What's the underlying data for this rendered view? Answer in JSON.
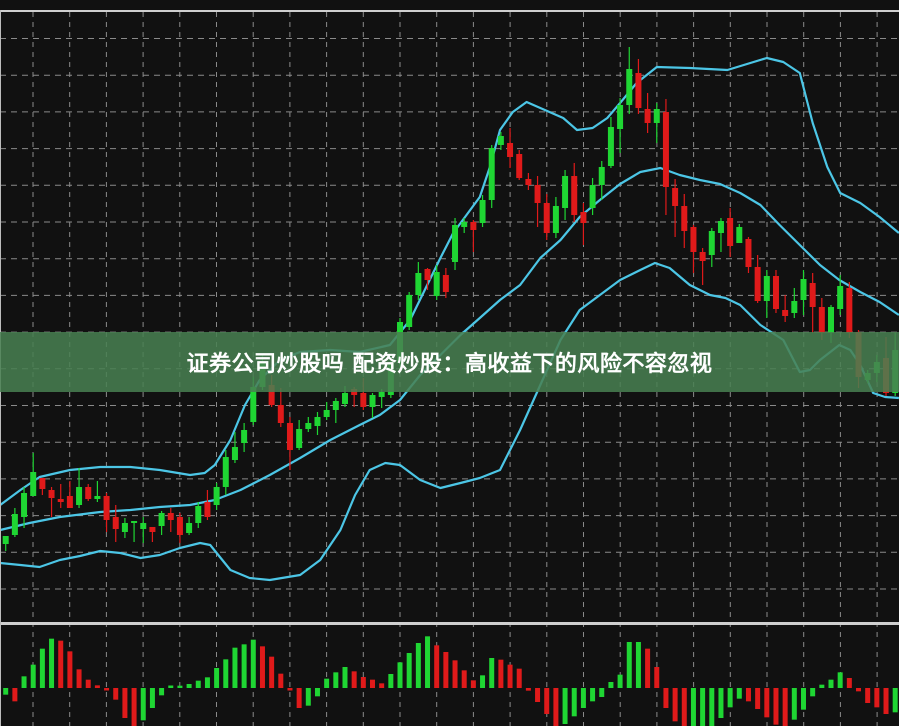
{
  "banner": {
    "title": "证券公司炒股吗 配资炒股：高收益下的风险不容忽视"
  },
  "chart_data": [
    {
      "type": "candlestick",
      "panel": "main",
      "grid": true,
      "ylim": [
        0,
        610
      ],
      "colors": {
        "up": "#1fd633",
        "down": "#e01a1a",
        "bands": "#4cc6e6",
        "background": "#111111",
        "grid": "#8a8a8a"
      },
      "ohlc": [
        [
          76,
          84,
          69,
          84
        ],
        [
          85,
          112,
          83,
          106
        ],
        [
          103,
          133,
          92,
          127
        ],
        [
          124,
          167,
          124,
          148
        ],
        [
          142,
          142,
          125,
          131
        ],
        [
          130,
          133,
          103,
          122
        ],
        [
          121,
          136,
          112,
          118
        ],
        [
          124,
          139,
          112,
          112
        ],
        [
          115,
          152,
          112,
          133
        ],
        [
          133,
          136,
          119,
          121
        ],
        [
          121,
          139,
          118,
          124
        ],
        [
          124,
          127,
          88,
          100
        ],
        [
          103,
          115,
          78,
          91
        ],
        [
          88,
          102,
          82,
          97
        ],
        [
          97,
          99,
          78,
          99
        ],
        [
          91,
          103,
          77,
          97
        ],
        [
          93,
          93,
          78,
          88
        ],
        [
          94,
          109,
          85,
          107
        ],
        [
          107,
          112,
          88,
          100
        ],
        [
          103,
          107,
          77,
          85
        ],
        [
          87,
          103,
          85,
          97
        ],
        [
          97,
          118,
          92,
          114
        ],
        [
          118,
          130,
          100,
          103
        ],
        [
          115,
          137,
          110,
          133
        ],
        [
          133,
          170,
          125,
          163
        ],
        [
          160,
          188,
          157,
          173
        ],
        [
          177,
          197,
          168,
          190
        ],
        [
          198,
          243,
          195,
          233
        ],
        [
          233,
          265,
          230,
          257
        ],
        [
          235,
          245,
          213,
          215
        ],
        [
          215,
          232,
          193,
          197
        ],
        [
          197,
          203,
          150,
          170
        ],
        [
          172,
          200,
          170,
          191
        ],
        [
          191,
          203,
          188,
          197
        ],
        [
          194,
          208,
          185,
          203
        ],
        [
          203,
          218,
          200,
          210
        ],
        [
          210,
          222,
          197,
          219
        ],
        [
          216,
          234,
          213,
          227
        ],
        [
          231,
          233,
          213,
          225
        ],
        [
          227,
          242,
          210,
          213
        ],
        [
          213,
          227,
          202,
          225
        ],
        [
          223,
          231,
          212,
          228
        ],
        [
          225,
          263,
          222,
          257
        ],
        [
          257,
          302,
          252,
          298
        ],
        [
          293,
          328,
          290,
          325
        ],
        [
          325,
          358,
          320,
          347
        ],
        [
          351,
          352,
          330,
          340
        ],
        [
          324,
          355,
          320,
          348
        ],
        [
          345,
          352,
          322,
          328
        ],
        [
          358,
          402,
          350,
          395
        ],
        [
          393,
          402,
          387,
          398
        ],
        [
          398,
          400,
          368,
          390
        ],
        [
          397,
          425,
          393,
          420
        ],
        [
          420,
          475,
          412,
          472
        ],
        [
          475,
          488,
          470,
          484
        ],
        [
          477,
          492,
          452,
          463
        ],
        [
          466,
          470,
          440,
          442
        ],
        [
          441,
          447,
          430,
          435
        ],
        [
          435,
          444,
          393,
          417
        ],
        [
          417,
          426,
          380,
          387
        ],
        [
          387,
          423,
          382,
          414
        ],
        [
          412,
          450,
          400,
          444
        ],
        [
          444,
          457,
          398,
          405
        ],
        [
          408,
          417,
          375,
          397
        ],
        [
          412,
          442,
          405,
          435
        ],
        [
          435,
          459,
          420,
          453
        ],
        [
          454,
          503,
          452,
          493
        ],
        [
          491,
          522,
          467,
          515
        ],
        [
          515,
          573,
          506,
          551
        ],
        [
          547,
          561,
          506,
          512
        ],
        [
          511,
          527,
          487,
          497
        ],
        [
          497,
          517,
          477,
          511
        ],
        [
          508,
          521,
          405,
          433
        ],
        [
          432,
          441,
          383,
          414
        ],
        [
          414,
          426,
          372,
          389
        ],
        [
          393,
          395,
          347,
          368
        ],
        [
          368,
          372,
          335,
          359
        ],
        [
          365,
          392,
          353,
          389
        ],
        [
          387,
          402,
          368,
          399
        ],
        [
          402,
          412,
          363,
          374
        ],
        [
          377,
          396,
          377,
          393
        ],
        [
          381,
          383,
          347,
          353
        ],
        [
          353,
          365,
          317,
          319
        ],
        [
          319,
          350,
          302,
          344
        ],
        [
          344,
          350,
          307,
          311
        ],
        [
          310,
          325,
          298,
          304
        ],
        [
          307,
          332,
          302,
          319
        ],
        [
          320,
          350,
          305,
          341
        ],
        [
          337,
          347,
          287,
          313
        ],
        [
          313,
          322,
          280,
          287
        ],
        [
          287,
          315,
          277,
          313
        ],
        [
          311,
          345,
          305,
          334
        ],
        [
          332,
          338,
          282,
          287
        ],
        [
          288,
          290,
          232,
          243
        ],
        [
          240,
          250,
          237,
          247
        ],
        [
          247,
          265,
          238,
          258
        ],
        [
          262,
          283,
          224,
          227
        ],
        [
          227,
          287,
          224,
          270
        ]
      ],
      "bollinger_upper": [
        [
          0.4,
          115
        ],
        [
          2.6,
          130
        ],
        [
          4.7,
          143
        ],
        [
          8.0,
          150
        ],
        [
          11.3,
          153
        ],
        [
          14.6,
          153
        ],
        [
          17.8,
          150
        ],
        [
          21.1,
          145
        ],
        [
          22.7,
          147
        ],
        [
          23.8,
          155
        ],
        [
          25.5,
          180
        ],
        [
          27.1,
          215
        ],
        [
          28.7,
          240
        ],
        [
          30.9,
          260
        ],
        [
          33.1,
          268
        ],
        [
          36.4,
          270
        ],
        [
          39.6,
          268
        ],
        [
          42.9,
          275
        ],
        [
          45.1,
          300
        ],
        [
          48.4,
          362
        ],
        [
          49.8,
          387
        ],
        [
          52.7,
          423
        ],
        [
          53.8,
          453
        ],
        [
          54.9,
          490
        ],
        [
          56.3,
          508
        ],
        [
          57.8,
          518
        ],
        [
          59.3,
          512
        ],
        [
          61.8,
          502
        ],
        [
          63.3,
          490
        ],
        [
          65.0,
          492
        ],
        [
          66.6,
          502
        ],
        [
          68.0,
          517
        ],
        [
          69.8,
          537
        ],
        [
          72.0,
          553
        ],
        [
          75.6,
          552
        ],
        [
          79.7,
          550
        ],
        [
          84.0,
          562
        ],
        [
          85.8,
          558
        ],
        [
          87.6,
          547
        ],
        [
          89.0,
          497
        ],
        [
          90.6,
          453
        ],
        [
          92.0,
          427
        ],
        [
          94.2,
          417
        ],
        [
          96.3,
          403
        ],
        [
          98.4,
          387
        ]
      ],
      "bollinger_middle": [
        [
          0.4,
          90
        ],
        [
          3.6,
          97
        ],
        [
          6.9,
          103
        ],
        [
          11.3,
          108
        ],
        [
          14.6,
          110
        ],
        [
          17.8,
          113
        ],
        [
          21.1,
          115
        ],
        [
          23.8,
          120
        ],
        [
          26.6,
          130
        ],
        [
          29.8,
          145
        ],
        [
          33.1,
          162
        ],
        [
          36.4,
          180
        ],
        [
          39.6,
          195
        ],
        [
          41.8,
          205
        ],
        [
          44.0,
          220
        ],
        [
          46.2,
          245
        ],
        [
          48.4,
          265
        ],
        [
          50.6,
          285
        ],
        [
          52.7,
          302
        ],
        [
          54.9,
          320
        ],
        [
          57.1,
          335
        ],
        [
          59.3,
          362
        ],
        [
          61.5,
          380
        ],
        [
          63.6,
          403
        ],
        [
          65.8,
          420
        ],
        [
          68.0,
          436
        ],
        [
          70.2,
          448
        ],
        [
          72.4,
          452
        ],
        [
          74.5,
          445
        ],
        [
          76.7,
          440
        ],
        [
          78.9,
          436
        ],
        [
          81.1,
          427
        ],
        [
          83.3,
          415
        ],
        [
          85.4,
          395
        ],
        [
          87.6,
          375
        ],
        [
          89.8,
          355
        ],
        [
          91.9,
          340
        ],
        [
          94.2,
          328
        ],
        [
          96.3,
          318
        ],
        [
          98.4,
          305
        ]
      ],
      "bollinger_lower": [
        [
          0.4,
          57
        ],
        [
          2.6,
          55
        ],
        [
          4.7,
          53
        ],
        [
          6.9,
          60
        ],
        [
          9.1,
          64
        ],
        [
          11.3,
          69
        ],
        [
          13.5,
          67
        ],
        [
          15.7,
          62
        ],
        [
          17.8,
          65
        ],
        [
          20.0,
          72
        ],
        [
          22.2,
          77
        ],
        [
          23.3,
          75
        ],
        [
          25.5,
          50
        ],
        [
          27.6,
          42
        ],
        [
          29.8,
          40
        ],
        [
          33.1,
          45
        ],
        [
          35.3,
          60
        ],
        [
          37.5,
          90
        ],
        [
          39.1,
          125
        ],
        [
          40.7,
          150
        ],
        [
          42.4,
          157
        ],
        [
          44.0,
          155
        ],
        [
          46.2,
          140
        ],
        [
          48.4,
          132
        ],
        [
          50.6,
          137
        ],
        [
          52.7,
          142
        ],
        [
          54.9,
          150
        ],
        [
          57.1,
          190
        ],
        [
          59.3,
          235
        ],
        [
          61.5,
          280
        ],
        [
          63.6,
          310
        ],
        [
          65.8,
          325
        ],
        [
          68.0,
          340
        ],
        [
          70.2,
          350
        ],
        [
          71.8,
          357
        ],
        [
          73.4,
          352
        ],
        [
          75.6,
          335
        ],
        [
          77.8,
          325
        ],
        [
          79.5,
          322
        ],
        [
          81.1,
          315
        ],
        [
          83.3,
          295
        ],
        [
          85.8,
          280
        ],
        [
          87.6,
          248
        ],
        [
          88.7,
          250
        ],
        [
          89.8,
          260
        ],
        [
          91.9,
          275
        ],
        [
          93.1,
          270
        ],
        [
          94.2,
          255
        ],
        [
          95.6,
          227
        ],
        [
          96.9,
          223
        ],
        [
          98.4,
          222
        ]
      ]
    },
    {
      "type": "bar",
      "panel": "oscillator-histogram",
      "grid": true,
      "values": [
        -0.2,
        -0.4,
        0.35,
        0.7,
        1.18,
        1.48,
        1.42,
        1.1,
        0.56,
        0.25,
        0.08,
        -0.02,
        -0.35,
        -0.9,
        -1.2,
        -0.97,
        -0.6,
        -0.22,
        0.05,
        0.07,
        0.12,
        0.22,
        0.32,
        0.6,
        0.86,
        1.21,
        1.31,
        1.45,
        1.25,
        0.94,
        0.43,
        -0.05,
        -0.6,
        -0.53,
        -0.25,
        0.28,
        0.47,
        0.63,
        0.5,
        0.33,
        0.25,
        0.14,
        0.42,
        0.77,
        1.05,
        1.35,
        1.55,
        1.28,
        1.08,
        0.83,
        0.53,
        0.23,
        0.38,
        0.9,
        0.85,
        0.7,
        0.58,
        -0.08,
        -0.42,
        -0.78,
        -1.2,
        -1.08,
        -0.85,
        -0.6,
        -0.4,
        -0.27,
        0.18,
        0.4,
        1.38,
        1.38,
        1.18,
        0.63,
        -0.6,
        -1.0,
        -1.2,
        -1.2,
        -1.2,
        -1.2,
        -0.9,
        -0.58,
        -0.32,
        -0.4,
        -0.63,
        -0.88,
        -1.1,
        -1.2,
        -0.95,
        -0.65,
        -0.25,
        0.1,
        0.25,
        0.47,
        0.3,
        -0.1,
        -0.45,
        -0.58,
        -0.78,
        -0.73
      ],
      "colors_by_bar": "green when rising, red when falling",
      "up_color": "#1fd633",
      "down_color": "#e01a1a"
    }
  ]
}
